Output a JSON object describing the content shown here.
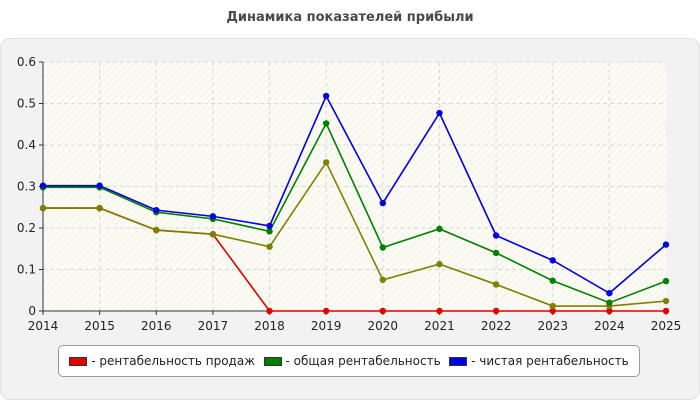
{
  "chart_data": {
    "type": "line",
    "title": "Динамика показателей прибыли",
    "categories": [
      "2014",
      "2015",
      "2016",
      "2017",
      "2018",
      "2019",
      "2020",
      "2021",
      "2022",
      "2023",
      "2024",
      "2025"
    ],
    "ylim": [
      0,
      0.6
    ],
    "yticks": [
      "0",
      "0.1",
      "0.2",
      "0.3",
      "0.4",
      "0.5",
      "0.6"
    ],
    "grid": true,
    "legend_position": "bottom",
    "series": [
      {
        "name": "- рентабельность продаж",
        "color": "#e00000",
        "values": [
          0.248,
          0.248,
          0.195,
          0.185,
          0,
          0,
          0,
          0,
          0,
          0,
          0,
          0
        ],
        "legend": true
      },
      {
        "name": "",
        "color": "#808000",
        "values": [
          0.248,
          0.248,
          0.195,
          0.185,
          0.155,
          0.358,
          0.075,
          0.113,
          0.064,
          0.012,
          0.012,
          0.024
        ],
        "legend": false
      },
      {
        "name": "- общая рентабельность",
        "color": "#008000",
        "values": [
          0.298,
          0.298,
          0.238,
          0.222,
          0.192,
          0.452,
          0.153,
          0.198,
          0.14,
          0.073,
          0.02,
          0.072
        ],
        "legend": true
      },
      {
        "name": "- чистая рентабельность",
        "color": "#0000e0",
        "values": [
          0.302,
          0.302,
          0.243,
          0.228,
          0.205,
          0.518,
          0.26,
          0.477,
          0.182,
          0.122,
          0.043,
          0.16
        ],
        "legend": true
      }
    ]
  }
}
